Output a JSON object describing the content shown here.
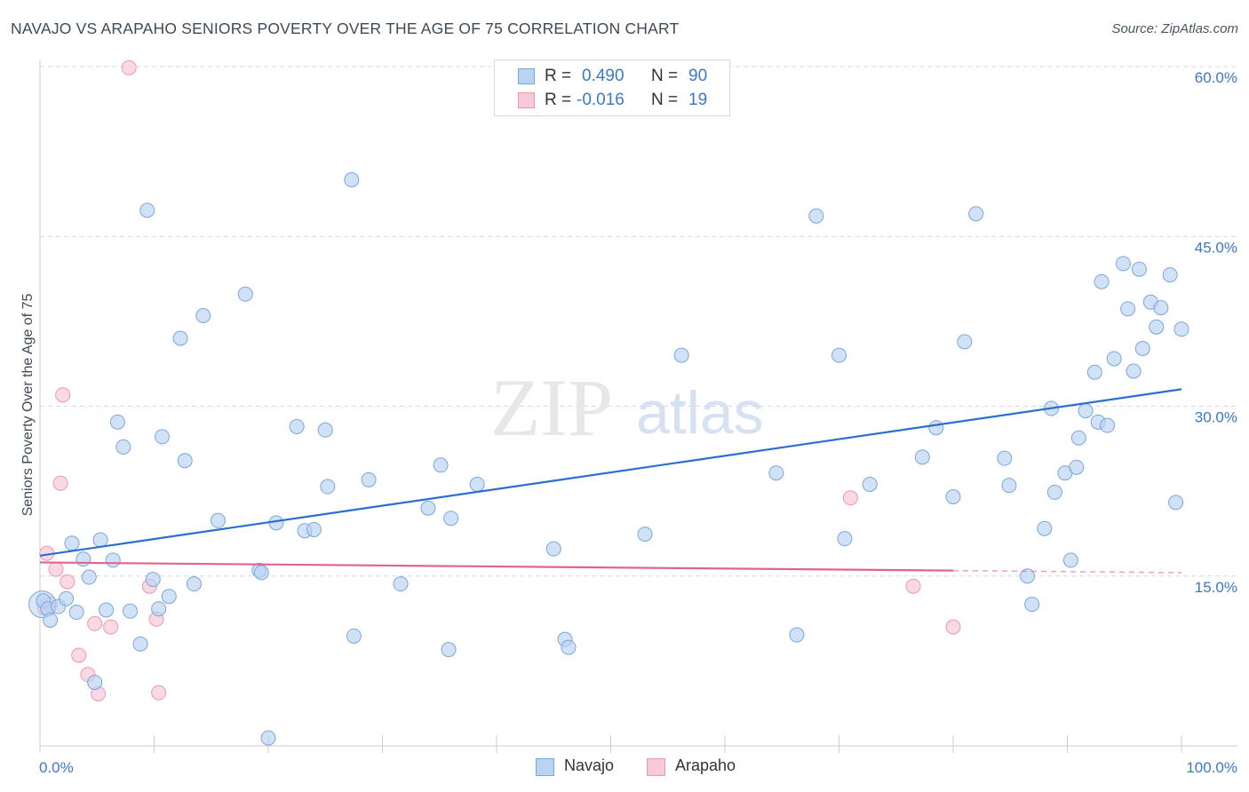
{
  "title": "NAVAJO VS ARAPAHO SENIORS POVERTY OVER THE AGE OF 75 CORRELATION CHART",
  "source": "Source: ZipAtlas.com",
  "watermark": {
    "zip": "ZIP",
    "atlas": "atlas"
  },
  "legend": {
    "navajo": {
      "r_label": "R =",
      "r_value": "0.490",
      "n_label": "N =",
      "n_value": "90"
    },
    "arapaho": {
      "r_label": "R =",
      "r_value": "-0.016",
      "n_label": "N =",
      "n_value": "19"
    }
  },
  "colors": {
    "navajo_fill": "#b9d3f2",
    "navajo_stroke": "#7aa6dc",
    "navajo_line": "#2a6fd0",
    "arapaho_fill": "#f9c9d6",
    "arapaho_stroke": "#e899b1",
    "arapaho_line": "#e0648e",
    "tick_label": "#3c78c8",
    "grid": "#d6d9de"
  },
  "chart_data": {
    "type": "scatter",
    "title": "NAVAJO VS ARAPAHO SENIORS POVERTY OVER THE AGE OF 75 CORRELATION CHART",
    "xlabel": "",
    "ylabel": "Seniors Poverty Over the Age of 75",
    "xlim": [
      0,
      100
    ],
    "ylim": [
      0,
      60
    ],
    "x_tick_labels": [
      "0.0%",
      "100.0%"
    ],
    "y_ticks": [
      15,
      30,
      45,
      60
    ],
    "y_tick_labels": [
      "15.0%",
      "30.0%",
      "45.0%",
      "60.0%"
    ],
    "series": [
      {
        "name": "Navajo",
        "trend": {
          "x": [
            0,
            100
          ],
          "y": [
            16.8,
            31.5
          ]
        },
        "points": [
          [
            0.3,
            12.8
          ],
          [
            0.7,
            12.1
          ],
          [
            0.9,
            11.1
          ],
          [
            1.6,
            12.3
          ],
          [
            2.3,
            13.0
          ],
          [
            2.8,
            17.9
          ],
          [
            3.2,
            11.8
          ],
          [
            3.8,
            16.5
          ],
          [
            4.3,
            14.9
          ],
          [
            4.8,
            5.6
          ],
          [
            5.3,
            18.2
          ],
          [
            5.8,
            12.0
          ],
          [
            6.4,
            16.4
          ],
          [
            6.8,
            28.6
          ],
          [
            7.3,
            26.4
          ],
          [
            7.9,
            11.9
          ],
          [
            8.8,
            9.0
          ],
          [
            9.4,
            47.3
          ],
          [
            9.9,
            14.7
          ],
          [
            10.4,
            12.1
          ],
          [
            10.7,
            27.3
          ],
          [
            11.3,
            13.2
          ],
          [
            12.3,
            36.0
          ],
          [
            12.7,
            25.2
          ],
          [
            13.5,
            14.3
          ],
          [
            14.3,
            38.0
          ],
          [
            15.6,
            19.9
          ],
          [
            18.0,
            39.9
          ],
          [
            19.2,
            15.5
          ],
          [
            19.4,
            15.3
          ],
          [
            20.0,
            0.7
          ],
          [
            20.7,
            19.7
          ],
          [
            22.5,
            28.2
          ],
          [
            23.2,
            19.0
          ],
          [
            24.0,
            19.1
          ],
          [
            25.0,
            27.9
          ],
          [
            25.2,
            22.9
          ],
          [
            27.3,
            50.0
          ],
          [
            27.5,
            9.7
          ],
          [
            28.8,
            23.5
          ],
          [
            31.6,
            14.3
          ],
          [
            34.0,
            21.0
          ],
          [
            35.1,
            24.8
          ],
          [
            35.8,
            8.5
          ],
          [
            36.0,
            20.1
          ],
          [
            38.3,
            23.1
          ],
          [
            45.0,
            17.4
          ],
          [
            46.0,
            9.4
          ],
          [
            46.3,
            8.7
          ],
          [
            53.0,
            18.7
          ],
          [
            56.2,
            34.5
          ],
          [
            64.5,
            24.1
          ],
          [
            66.3,
            9.8
          ],
          [
            68.0,
            46.8
          ],
          [
            70.0,
            34.5
          ],
          [
            70.5,
            18.3
          ],
          [
            72.7,
            23.1
          ],
          [
            77.3,
            25.5
          ],
          [
            78.5,
            28.1
          ],
          [
            80.0,
            22.0
          ],
          [
            81.0,
            35.7
          ],
          [
            82.0,
            47.0
          ],
          [
            84.5,
            25.4
          ],
          [
            84.9,
            23.0
          ],
          [
            86.5,
            15.0
          ],
          [
            86.9,
            12.5
          ],
          [
            88.0,
            19.2
          ],
          [
            88.6,
            29.8
          ],
          [
            88.9,
            22.4
          ],
          [
            89.8,
            24.1
          ],
          [
            90.3,
            16.4
          ],
          [
            90.8,
            24.6
          ],
          [
            91.0,
            27.2
          ],
          [
            91.6,
            29.6
          ],
          [
            92.4,
            33.0
          ],
          [
            92.7,
            28.6
          ],
          [
            93.0,
            41.0
          ],
          [
            93.5,
            28.3
          ],
          [
            94.1,
            34.2
          ],
          [
            94.9,
            42.6
          ],
          [
            95.3,
            38.6
          ],
          [
            95.8,
            33.1
          ],
          [
            96.3,
            42.1
          ],
          [
            96.6,
            35.1
          ],
          [
            97.3,
            39.2
          ],
          [
            97.8,
            37.0
          ],
          [
            98.2,
            38.7
          ],
          [
            99.0,
            41.6
          ],
          [
            99.5,
            21.5
          ],
          [
            100.0,
            36.8
          ]
        ]
      },
      {
        "name": "Arapaho",
        "trend": {
          "x": [
            0,
            100
          ],
          "y": [
            16.2,
            15.3
          ],
          "solid_until": 80
        },
        "points": [
          [
            0.4,
            12.2
          ],
          [
            0.6,
            17.0
          ],
          [
            0.9,
            12.5
          ],
          [
            1.4,
            15.6
          ],
          [
            1.8,
            23.2
          ],
          [
            2.0,
            31.0
          ],
          [
            2.4,
            14.5
          ],
          [
            3.4,
            8.0
          ],
          [
            4.2,
            6.3
          ],
          [
            4.8,
            10.8
          ],
          [
            5.1,
            4.6
          ],
          [
            6.2,
            10.5
          ],
          [
            7.8,
            59.9
          ],
          [
            9.6,
            14.1
          ],
          [
            10.2,
            11.2
          ],
          [
            10.4,
            4.7
          ],
          [
            71.0,
            21.9
          ],
          [
            76.5,
            14.1
          ],
          [
            80.0,
            10.5
          ]
        ]
      }
    ]
  },
  "bottom_legend": {
    "navajo": "Navajo",
    "arapaho": "Arapaho"
  }
}
